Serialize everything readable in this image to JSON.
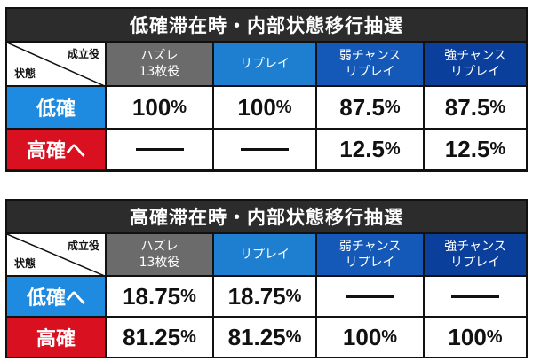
{
  "tables": [
    {
      "title": "低確滞在時・内部状態移行抽選",
      "corner_top": "成立役",
      "corner_bottom": "状態",
      "headers": [
        {
          "line1": "ハズレ",
          "line2": "13枚役"
        },
        {
          "line1": "リプレイ",
          "line2": ""
        },
        {
          "line1": "弱チャンス",
          "line2": "リプレイ"
        },
        {
          "line1": "強チャンス",
          "line2": "リプレイ"
        }
      ],
      "rows": [
        {
          "state": "低確",
          "values": [
            "100",
            "100",
            "87.5",
            "87.5"
          ]
        },
        {
          "state": "高確へ",
          "values": [
            "—",
            "—",
            "12.5",
            "12.5"
          ]
        }
      ]
    },
    {
      "title": "高確滞在時・内部状態移行抽選",
      "corner_top": "成立役",
      "corner_bottom": "状態",
      "headers": [
        {
          "line1": "ハズレ",
          "line2": "13枚役"
        },
        {
          "line1": "リプレイ",
          "line2": ""
        },
        {
          "line1": "弱チャンス",
          "line2": "リプレイ"
        },
        {
          "line1": "強チャンス",
          "line2": "リプレイ"
        }
      ],
      "rows": [
        {
          "state": "低確へ",
          "values": [
            "18.75",
            "18.75",
            "—",
            "—"
          ]
        },
        {
          "state": "高確",
          "values": [
            "81.25",
            "81.25",
            "100",
            "100"
          ]
        }
      ]
    }
  ],
  "percent_sign": "%"
}
